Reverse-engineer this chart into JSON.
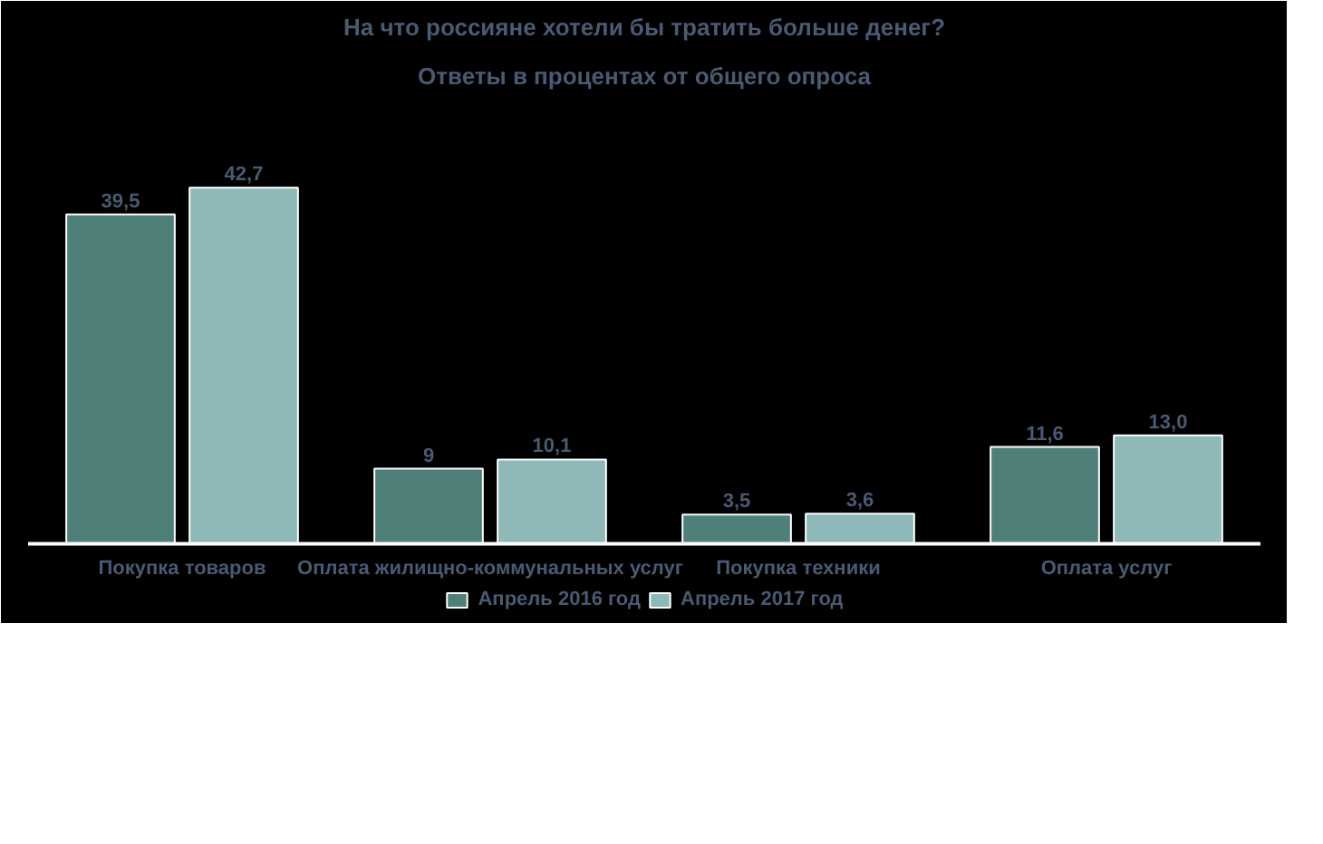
{
  "chart_data": {
    "type": "bar",
    "title": "На что россияне хотели бы тратить больше денег?",
    "subtitle": "Ответы в процентах от общего опроса",
    "categories": [
      "Покупка товаров",
      "Оплата жилищно-коммунальных услуг",
      "Покупка техники",
      "Оплата услуг"
    ],
    "series": [
      {
        "name": "Апрель 2016 год",
        "color": "#4e8079",
        "values": [
          39.5,
          9,
          3.5,
          11.6
        ],
        "value_labels": [
          "39,5",
          "9",
          "3,5",
          "11,6"
        ]
      },
      {
        "name": "Апрель 2017 год",
        "color": "#8fb8b8",
        "values": [
          42.7,
          10.1,
          3.6,
          13.0
        ],
        "value_labels": [
          "42,7",
          "10,1",
          "3,6",
          "13,0"
        ]
      }
    ],
    "legend": "bottom"
  }
}
